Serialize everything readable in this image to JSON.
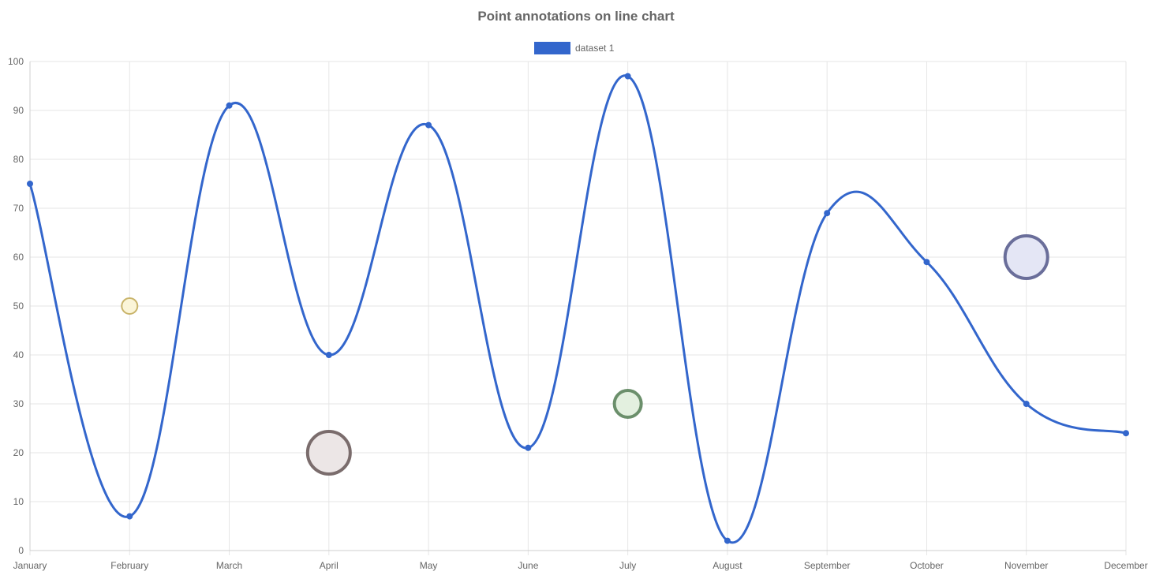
{
  "chart_data": {
    "type": "line",
    "title": "Point annotations on line chart",
    "categories": [
      "January",
      "February",
      "March",
      "April",
      "May",
      "June",
      "July",
      "August",
      "September",
      "October",
      "November",
      "December"
    ],
    "series": [
      {
        "name": "dataset 1",
        "values": [
          75,
          7,
          91,
          40,
          87,
          21,
          97,
          2,
          69,
          59,
          30,
          24
        ],
        "color": "#3366cc"
      }
    ],
    "ylim": [
      0,
      100
    ],
    "yticks": [
      0,
      10,
      20,
      30,
      40,
      50,
      60,
      70,
      80,
      90,
      100
    ],
    "ytick_labels": [
      "0",
      "10",
      "20",
      "30",
      "40",
      "50",
      "60",
      "70",
      "80",
      "90",
      "100"
    ],
    "grid": true,
    "legend": "top-center",
    "smooth": true,
    "annotations": [
      {
        "type": "point",
        "x": "February",
        "y": 50,
        "size": "small",
        "fill": "#fbf5d8",
        "stroke": "#c9b46a"
      },
      {
        "type": "point",
        "x": "April",
        "y": 20,
        "size": "large",
        "fill": "#ece6e6",
        "stroke": "#7a6c6c"
      },
      {
        "type": "point",
        "x": "July",
        "y": 30,
        "size": "medium",
        "fill": "#e3f0df",
        "stroke": "#6b8f6b"
      },
      {
        "type": "point",
        "x": "November",
        "y": 60,
        "size": "large",
        "fill": "#e4e6f5",
        "stroke": "#6a6e9a"
      }
    ]
  }
}
